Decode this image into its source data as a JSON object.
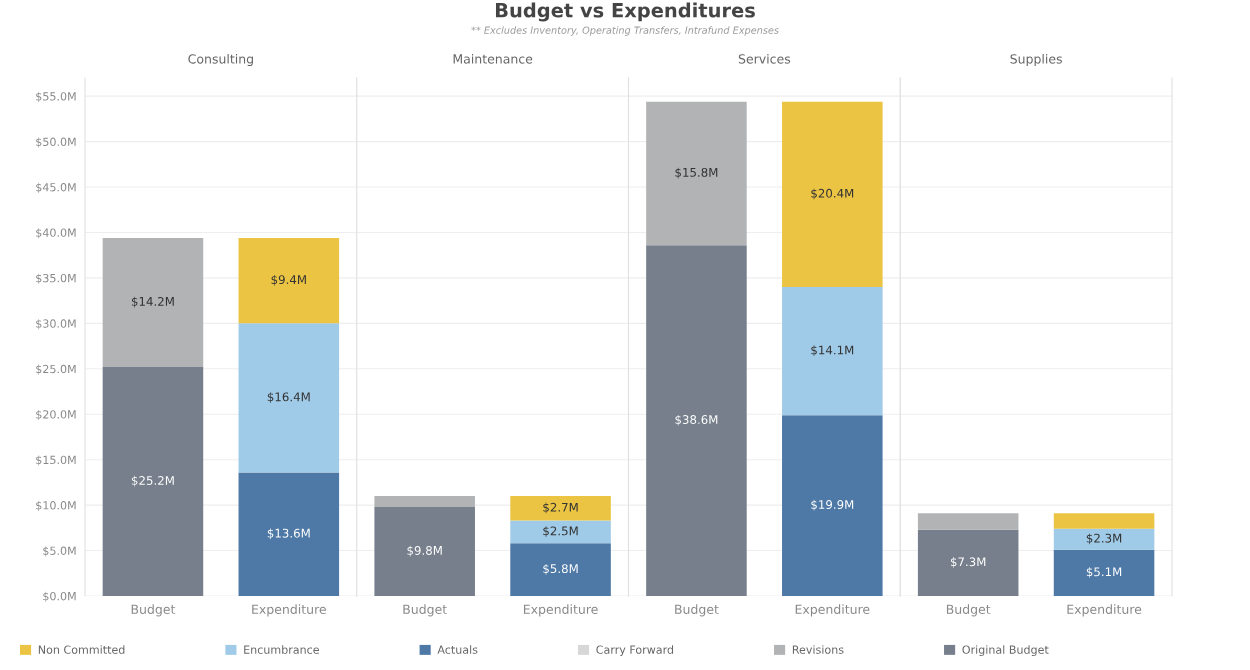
{
  "chart_data": [
    {
      "type": "other",
      "title": "Budget vs Expenditures",
      "subtitle": "** Excludes Inventory, Operating Transfers, Intrafund Expenses"
    },
    {
      "type": "bar",
      "stacked": true,
      "title": "Consulting",
      "categories": [
        "Budget",
        "Expenditure"
      ],
      "ylim": [
        0,
        57
      ],
      "yticks": [
        {
          "value": 0,
          "label": "$0.0M"
        },
        {
          "value": 5,
          "label": "$5.0M"
        },
        {
          "value": 10,
          "label": "$10.0M"
        },
        {
          "value": 15,
          "label": "$15.0M"
        },
        {
          "value": 20,
          "label": "$20.0M"
        },
        {
          "value": 25,
          "label": "$25.0M"
        },
        {
          "value": 30,
          "label": "$30.0M"
        },
        {
          "value": 35,
          "label": "$35.0M"
        },
        {
          "value": 40,
          "label": "$40.0M"
        },
        {
          "value": 45,
          "label": "$45.0M"
        },
        {
          "value": 50,
          "label": "$50.0M"
        },
        {
          "value": 55,
          "label": "$55.0M"
        }
      ],
      "grid": "y",
      "legend": "bottom",
      "series": [
        {
          "name": "Original Budget",
          "color": "#767f8b",
          "values": [
            25.2,
            null
          ],
          "value_labels": [
            "$25.2M",
            null
          ]
        },
        {
          "name": "Revisions",
          "color": "#b1b3b5",
          "values": [
            14.2,
            null
          ],
          "value_labels": [
            "$14.2M",
            null
          ]
        },
        {
          "name": "Carry Forward",
          "color": "#d7d7d7",
          "values": [
            null,
            null
          ]
        },
        {
          "name": "Actuals",
          "color": "#4e79a7",
          "values": [
            null,
            13.6
          ],
          "value_labels": [
            null,
            "$13.6M"
          ]
        },
        {
          "name": "Encumbrance",
          "color": "#a0cbe8",
          "values": [
            null,
            16.4
          ],
          "value_labels": [
            null,
            "$16.4M"
          ]
        },
        {
          "name": "Non Committed",
          "color": "#ebc443",
          "values": [
            null,
            9.4
          ],
          "value_labels": [
            null,
            "$9.4M"
          ]
        }
      ]
    },
    {
      "type": "bar",
      "stacked": true,
      "title": "Maintenance",
      "categories": [
        "Budget",
        "Expenditure"
      ],
      "ylim": [
        0,
        57
      ],
      "yticks": [
        0,
        5,
        10,
        15,
        20,
        25,
        30,
        35,
        40,
        45,
        50,
        55
      ],
      "grid": "y",
      "tick_labels": "x",
      "series": [
        {
          "color": "#767f8b",
          "values": [
            9.8,
            null
          ],
          "value_labels": [
            "$9.8M",
            null
          ]
        },
        {
          "color": "#b1b3b5",
          "values": [
            1.2,
            null
          ],
          "value_labels": [
            null,
            null
          ]
        },
        {
          "color": "#4e79a7",
          "values": [
            null,
            5.8
          ],
          "value_labels": [
            null,
            "$5.8M"
          ]
        },
        {
          "color": "#a0cbe8",
          "values": [
            null,
            2.5
          ],
          "value_labels": [
            null,
            "$2.5M"
          ]
        },
        {
          "color": "#ebc443",
          "values": [
            null,
            2.7
          ],
          "value_labels": [
            null,
            "$2.7M"
          ]
        }
      ]
    },
    {
      "type": "bar",
      "stacked": true,
      "title": "Services",
      "categories": [
        "Budget",
        "Expenditure"
      ],
      "ylim": [
        0,
        57
      ],
      "yticks": [
        0,
        5,
        10,
        15,
        20,
        25,
        30,
        35,
        40,
        45,
        50,
        55
      ],
      "grid": "y",
      "tick_labels": "x",
      "series": [
        {
          "color": "#767f8b",
          "values": [
            38.6,
            null
          ],
          "value_labels": [
            "$38.6M",
            null
          ]
        },
        {
          "color": "#b1b3b5",
          "values": [
            15.8,
            null
          ],
          "value_labels": [
            "$15.8M",
            null
          ]
        },
        {
          "color": "#4e79a7",
          "values": [
            null,
            19.9
          ],
          "value_labels": [
            null,
            "$19.9M"
          ]
        },
        {
          "color": "#a0cbe8",
          "values": [
            null,
            14.1
          ],
          "value_labels": [
            null,
            "$14.1M"
          ]
        },
        {
          "color": "#ebc443",
          "values": [
            null,
            20.4
          ],
          "value_labels": [
            null,
            "$20.4M"
          ]
        }
      ]
    },
    {
      "type": "bar",
      "stacked": true,
      "title": "Supplies",
      "categories": [
        "Budget",
        "Expenditure"
      ],
      "ylim": [
        0,
        57
      ],
      "yticks": [
        0,
        5,
        10,
        15,
        20,
        25,
        30,
        35,
        40,
        45,
        50,
        55
      ],
      "grid": "y",
      "tick_labels": "x",
      "series": [
        {
          "color": "#767f8b",
          "values": [
            7.3,
            null
          ],
          "value_labels": [
            "$7.3M",
            null
          ]
        },
        {
          "color": "#b1b3b5",
          "values": [
            1.8,
            null
          ],
          "value_labels": [
            null,
            null
          ]
        },
        {
          "color": "#4e79a7",
          "values": [
            null,
            5.1
          ],
          "value_labels": [
            null,
            "$5.1M"
          ]
        },
        {
          "color": "#a0cbe8",
          "values": [
            null,
            2.3
          ],
          "value_labels": [
            null,
            "$2.3M"
          ]
        },
        {
          "color": "#ebc443",
          "values": [
            null,
            1.7
          ],
          "value_labels": [
            null,
            null
          ]
        }
      ]
    }
  ]
}
